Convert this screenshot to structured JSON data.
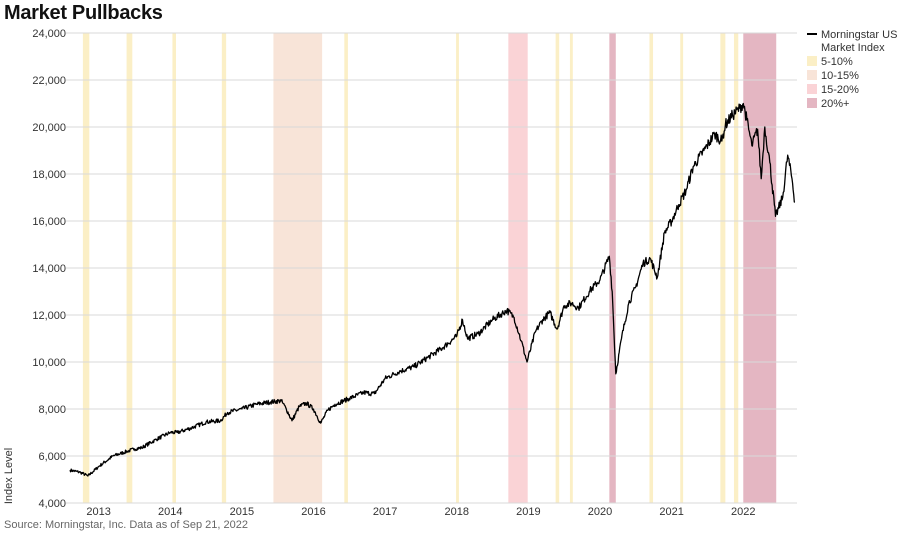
{
  "title": "Market Pullbacks",
  "source": "Source: Morningstar, Inc. Data as of Sep 21, 2022",
  "colors": {
    "line": "#000000",
    "grid": "#d9d9d9",
    "5-10%": "#fbefc6",
    "10-15%": "#f8e4d8",
    "15-20%": "#fad3d6",
    "20%+": "#e4b6c2"
  },
  "chart_data": {
    "type": "line",
    "title": "Market Pullbacks",
    "ylabel": "Index Level",
    "xlabel": "",
    "ylim": [
      4000,
      24000
    ],
    "xlim": [
      2012.6,
      2022.75
    ],
    "y_ticks": [
      "4,000",
      "6,000",
      "8,000",
      "10,000",
      "12,000",
      "14,000",
      "16,000",
      "18,000",
      "20,000",
      "22,000",
      "24,000"
    ],
    "x_ticks": [
      "2013",
      "2014",
      "2015",
      "2016",
      "2017",
      "2018",
      "2019",
      "2020",
      "2021",
      "2022"
    ],
    "legend": {
      "placement": "right",
      "entries": [
        {
          "label": "Morningstar US Market Index",
          "kind": "line"
        },
        {
          "label": "5-10%",
          "kind": "band"
        },
        {
          "label": "10-15%",
          "kind": "band"
        },
        {
          "label": "15-20%",
          "kind": "band"
        },
        {
          "label": "20%+",
          "kind": "band"
        }
      ]
    },
    "series": [
      {
        "name": "Morningstar US Market Index",
        "x": [
          2012.6,
          2012.75,
          2012.85,
          2013.0,
          2013.2,
          2013.4,
          2013.5,
          2013.6,
          2013.8,
          2014.0,
          2014.1,
          2014.3,
          2014.5,
          2014.7,
          2014.8,
          2015.0,
          2015.2,
          2015.4,
          2015.55,
          2015.62,
          2015.7,
          2015.8,
          2015.9,
          2016.0,
          2016.1,
          2016.2,
          2016.3,
          2016.5,
          2016.7,
          2016.85,
          2017.0,
          2017.2,
          2017.4,
          2017.6,
          2017.8,
          2018.0,
          2018.08,
          2018.15,
          2018.3,
          2018.5,
          2018.7,
          2018.8,
          2018.9,
          2018.98,
          2019.1,
          2019.2,
          2019.3,
          2019.4,
          2019.5,
          2019.6,
          2019.7,
          2019.85,
          2020.0,
          2020.13,
          2020.17,
          2020.22,
          2020.3,
          2020.4,
          2020.5,
          2020.6,
          2020.7,
          2020.8,
          2020.9,
          2021.0,
          2021.1,
          2021.2,
          2021.3,
          2021.45,
          2021.6,
          2021.7,
          2021.75,
          2021.85,
          2021.95,
          2022.0,
          2022.05,
          2022.12,
          2022.2,
          2022.25,
          2022.3,
          2022.37,
          2022.45,
          2022.55,
          2022.62,
          2022.68,
          2022.72
        ],
        "y": [
          5400,
          5300,
          5150,
          5550,
          6000,
          6200,
          6300,
          6350,
          6700,
          7000,
          7000,
          7200,
          7450,
          7500,
          7850,
          8000,
          8200,
          8300,
          8350,
          8000,
          7500,
          8100,
          8250,
          8000,
          7400,
          7950,
          8200,
          8450,
          8700,
          8650,
          9300,
          9600,
          9800,
          10200,
          10600,
          11100,
          11800,
          11000,
          11200,
          11800,
          12200,
          11900,
          10900,
          10000,
          11300,
          11800,
          12100,
          11400,
          12400,
          12500,
          12300,
          13000,
          13500,
          14500,
          13000,
          9500,
          11000,
          12500,
          13200,
          14200,
          14400,
          13600,
          15500,
          16000,
          16700,
          17300,
          18300,
          19000,
          19700,
          19400,
          20100,
          20500,
          20800,
          21000,
          20300,
          19200,
          19900,
          17800,
          20000,
          18500,
          16200,
          17000,
          18800,
          17800,
          16800
        ]
      }
    ],
    "pullbacks": [
      {
        "category": "5-10%",
        "start": 2012.78,
        "end": 2012.87
      },
      {
        "category": "5-10%",
        "start": 2013.39,
        "end": 2013.47
      },
      {
        "category": "5-10%",
        "start": 2014.03,
        "end": 2014.08
      },
      {
        "category": "5-10%",
        "start": 2014.72,
        "end": 2014.78
      },
      {
        "category": "10-15%",
        "start": 2015.44,
        "end": 2016.12
      },
      {
        "category": "5-10%",
        "start": 2016.43,
        "end": 2016.48
      },
      {
        "category": "5-10%",
        "start": 2017.99,
        "end": 2018.03
      },
      {
        "category": "15-20%",
        "start": 2018.72,
        "end": 2018.99
      },
      {
        "category": "5-10%",
        "start": 2019.38,
        "end": 2019.43
      },
      {
        "category": "5-10%",
        "start": 2019.58,
        "end": 2019.62
      },
      {
        "category": "20%+",
        "start": 2020.13,
        "end": 2020.22
      },
      {
        "category": "5-10%",
        "start": 2020.69,
        "end": 2020.74
      },
      {
        "category": "5-10%",
        "start": 2021.12,
        "end": 2021.16
      },
      {
        "category": "5-10%",
        "start": 2021.68,
        "end": 2021.75
      },
      {
        "category": "5-10%",
        "start": 2021.87,
        "end": 2021.93
      },
      {
        "category": "20%+",
        "start": 2022.0,
        "end": 2022.46
      }
    ]
  }
}
